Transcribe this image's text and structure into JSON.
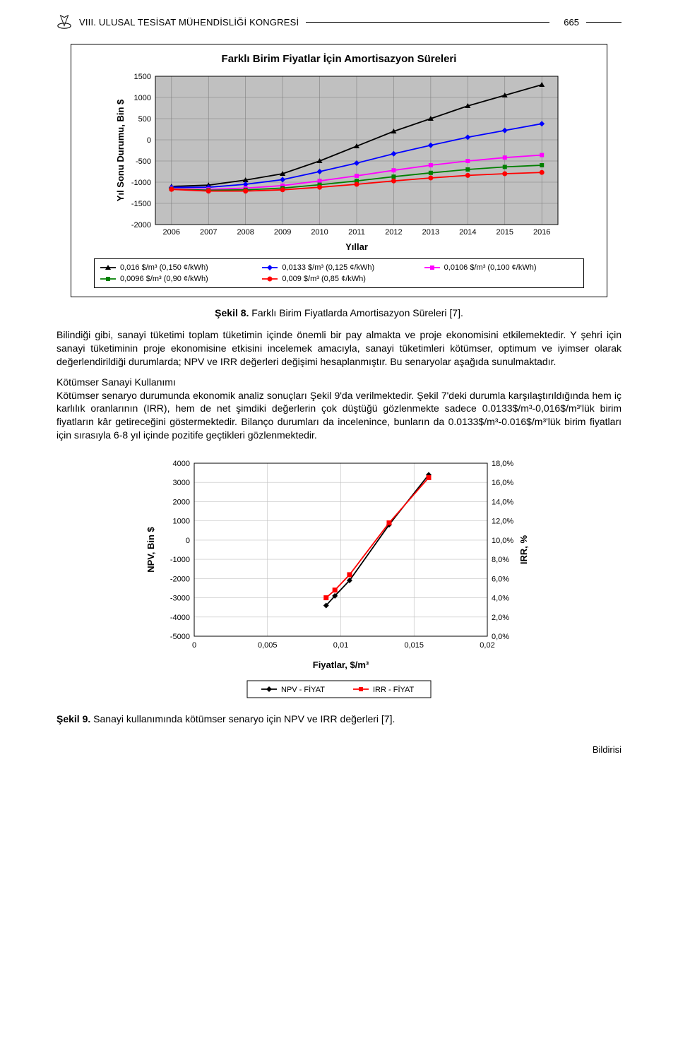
{
  "header": {
    "title": "VIII. ULUSAL TESİSAT MÜHENDİSLİĞİ KONGRESİ",
    "page_number": "665"
  },
  "chart1": {
    "type": "line",
    "title": "Farklı Birim Fiyatlar İçin Amortisazyon Süreleri",
    "x_label": "Yıllar",
    "y_label": "Yıl Sonu Durumu, Bin $",
    "x_categories": [
      "2006",
      "2007",
      "2008",
      "2009",
      "2010",
      "2011",
      "2012",
      "2013",
      "2014",
      "2015",
      "2016"
    ],
    "y_ticks": [
      -2000,
      -1500,
      -1000,
      -500,
      0,
      500,
      1000,
      1500
    ],
    "ylim": [
      -2000,
      1500
    ],
    "background_color": "#c0c0c0",
    "grid_color": "#808080",
    "frame_color": "#000000",
    "series": [
      {
        "label": "0,016 $/m³ (0,150 ¢/kWh)",
        "color": "#000000",
        "marker": "triangle",
        "values": [
          -1100,
          -1070,
          -950,
          -800,
          -500,
          -150,
          200,
          500,
          800,
          1050,
          1300
        ]
      },
      {
        "label": "0,0133 $/m³ (0,125 ¢/kWh)",
        "color": "#0000ff",
        "marker": "diamond",
        "values": [
          -1120,
          -1120,
          -1050,
          -940,
          -750,
          -550,
          -330,
          -130,
          60,
          220,
          380
        ]
      },
      {
        "label": "0,0106 $/m³ (0,100 ¢/kWh)",
        "color": "#ff00ff",
        "marker": "square",
        "values": [
          -1150,
          -1170,
          -1140,
          -1080,
          -970,
          -850,
          -720,
          -600,
          -500,
          -420,
          -360
        ]
      },
      {
        "label": "0,0096 $/m³ (0,90 ¢/kWh)",
        "color": "#008000",
        "marker": "square",
        "values": [
          -1160,
          -1190,
          -1180,
          -1140,
          -1060,
          -970,
          -870,
          -780,
          -700,
          -640,
          -600
        ]
      },
      {
        "label": "0,009 $/m³ (0,85 ¢/kWh)",
        "color": "#ff0000",
        "marker": "circle",
        "values": [
          -1170,
          -1210,
          -1210,
          -1180,
          -1120,
          -1050,
          -970,
          -900,
          -840,
          -800,
          -770
        ]
      }
    ]
  },
  "caption1": {
    "bold": "Şekil 8.",
    "text": " Farklı Birim Fiyatlarda Amortisazyon Süreleri [7]."
  },
  "para1": "Bilindiği gibi, sanayi tüketimi toplam tüketimin içinde önemli bir pay almakta ve proje ekonomisini etkilemektedir. Y şehri için sanayi tüketiminin proje ekonomisine etkisini incelemek amacıyla, sanayi tüketimleri kötümser, optimum ve iyimser olarak değerlendirildiği durumlarda; NPV ve IRR değerleri değişimi hesaplanmıştır. Bu senaryolar aşağıda sunulmaktadır.",
  "para2_title": "Kötümser Sanayi Kullanımı",
  "para2": "Kötümser senaryo durumunda ekonomik analiz sonuçları Şekil 9'da verilmektedir. Şekil 7'deki durumla karşılaştırıldığında hem iç karlılık oranlarının (IRR), hem de net şimdiki değerlerin çok düştüğü gözlenmekte sadece 0.0133$/m³-0,016$/m³'lük birim fiyatların kâr getireceğini göstermektedir. Bilanço durumları da incelenince, bunların da 0.0133$/m³-0.016$/m³'lük birim fiyatları için sırasıyla 6-8 yıl içinde pozitife geçtikleri gözlenmektedir.",
  "chart2": {
    "type": "dual-axis-line",
    "x_label": "Fiyatlar, $/m³",
    "y1_label": "NPV, Bin $",
    "y2_label": "IRR, %",
    "x_ticks": [
      "0",
      "0,005",
      "0,01",
      "0,015",
      "0,02"
    ],
    "y1_ticks": [
      -5000,
      -4000,
      -3000,
      -2000,
      -1000,
      0,
      1000,
      2000,
      3000,
      4000
    ],
    "y2_ticks": [
      "0,0%",
      "2,0%",
      "4,0%",
      "6,0%",
      "8,0%",
      "10,0%",
      "12,0%",
      "14,0%",
      "16,0%",
      "18,0%"
    ],
    "y1_lim": [
      -5000,
      4000
    ],
    "y2_lim": [
      0,
      18
    ],
    "x_lim": [
      0,
      0.02
    ],
    "background_color": "#ffffff",
    "grid_color": "#c0c0c0",
    "series": [
      {
        "label": "NPV - FİYAT",
        "color": "#000000",
        "marker": "diamond",
        "axis": "y1",
        "points": [
          [
            0.009,
            -3400
          ],
          [
            0.0096,
            -2900
          ],
          [
            0.0106,
            -2100
          ],
          [
            0.0133,
            800
          ],
          [
            0.016,
            3400
          ]
        ]
      },
      {
        "label": "IRR - FİYAT",
        "color": "#ff0000",
        "marker": "square",
        "axis": "y2",
        "points": [
          [
            0.009,
            4.0
          ],
          [
            0.0096,
            4.8
          ],
          [
            0.0106,
            6.4
          ],
          [
            0.0133,
            11.8
          ],
          [
            0.016,
            16.5
          ]
        ]
      }
    ]
  },
  "caption2": {
    "bold": "Şekil 9.",
    "text": " Sanayi kullanımında kötümser senaryo için NPV ve IRR değerleri [7]."
  },
  "footer": "Bildirisi"
}
